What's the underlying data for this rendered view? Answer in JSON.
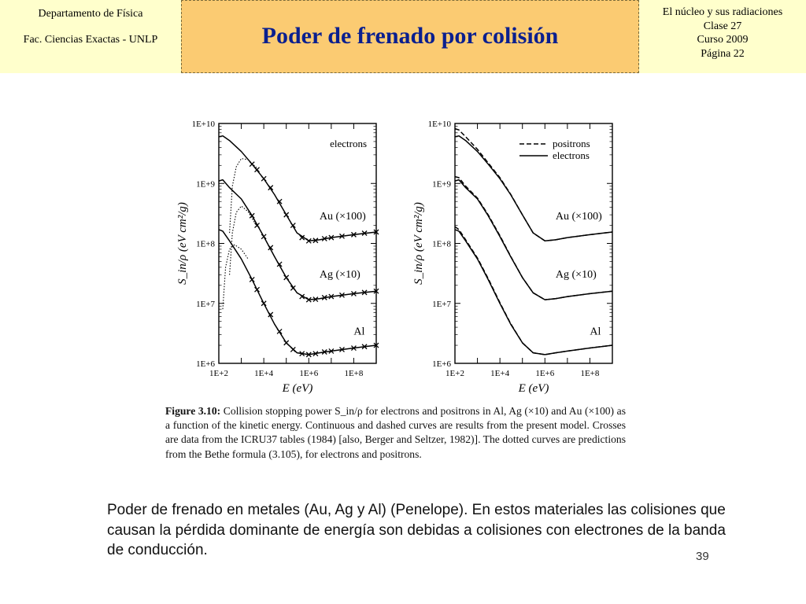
{
  "header": {
    "left": [
      "Departamento de Física",
      "Fac. Ciencias Exactas - UNLP"
    ],
    "title": "Poder de frenado por colisión",
    "right": [
      "El núcleo y sus radiaciones",
      "Clase 27",
      "Curso 2009",
      "Página 22"
    ]
  },
  "chart_data": [
    {
      "type": "line",
      "panel": "left",
      "legend_text": "electrons",
      "xlabel": "E  (eV)",
      "ylabel": "S_in/ρ  (eV cm²/g)",
      "xscale": "log",
      "yscale": "log",
      "xlim": [
        100,
        1000000000
      ],
      "ylim": [
        1000000,
        10000000000
      ],
      "x_ticks": [
        "1E+2",
        "1E+4",
        "1E+6",
        "1E+8"
      ],
      "y_ticks": [
        "1E+6",
        "1E+7",
        "1E+8",
        "1E+9",
        "1E+10"
      ],
      "series": [
        {
          "name": "Au (×100)",
          "style": "solid",
          "x": [
            100,
            150,
            300,
            1000,
            3000,
            10000,
            30000,
            100000,
            300000,
            1000000,
            3000000,
            10000000,
            100000000,
            1000000000
          ],
          "y": [
            6000000000,
            6200000000,
            5200000000,
            3400000000,
            2100000000,
            1200000000,
            650000000,
            300000000,
            150000000,
            110000000,
            115000000,
            125000000,
            140000000,
            155000000
          ]
        },
        {
          "name": "Au (×100) data",
          "style": "crosses",
          "x": [
            3000,
            5000,
            10000,
            20000,
            50000,
            100000,
            200000,
            500000,
            1000000,
            2000000,
            5000000,
            10000000,
            30000000,
            100000000,
            300000000,
            1000000000
          ],
          "y": [
            2100000000,
            1700000000,
            1200000000,
            850000000,
            500000000,
            300000000,
            200000000,
            125000000,
            110000000,
            112000000,
            120000000,
            125000000,
            132000000,
            140000000,
            148000000,
            155000000
          ]
        },
        {
          "name": "Au (×100) Bethe",
          "style": "dotted",
          "x": [
            300,
            400,
            600,
            1000,
            2000,
            5000
          ],
          "y": [
            150000000,
            900000000,
            1900000000,
            2600000000,
            2500000000,
            1800000000
          ]
        },
        {
          "name": "Ag (×10)",
          "style": "solid",
          "x": [
            100,
            150,
            300,
            1000,
            3000,
            10000,
            30000,
            100000,
            300000,
            1000000,
            3000000,
            10000000,
            100000000,
            1000000000
          ],
          "y": [
            1100000000,
            1150000000,
            850000000,
            550000000,
            290000000,
            130000000,
            60000000,
            27000000,
            15000000,
            11500000,
            12000000,
            13000000,
            14500000,
            16000000
          ]
        },
        {
          "name": "Ag (×10) data",
          "style": "crosses",
          "x": [
            3000,
            5000,
            10000,
            20000,
            50000,
            100000,
            200000,
            500000,
            1000000,
            2000000,
            5000000,
            10000000,
            30000000,
            100000000,
            300000000,
            1000000000
          ],
          "y": [
            290000000,
            200000000,
            130000000,
            85000000,
            45000000,
            27000000,
            18000000,
            13000000,
            11500000,
            11700000,
            12500000,
            13000000,
            13700000,
            14500000,
            15200000,
            16000000
          ]
        },
        {
          "name": "Ag (×10) Bethe",
          "style": "dotted",
          "x": [
            300,
            400,
            600,
            1000,
            2000,
            5000
          ],
          "y": [
            30000000,
            150000000,
            330000000,
            420000000,
            340000000,
            190000000
          ]
        },
        {
          "name": "Al",
          "style": "solid",
          "x": [
            100,
            150,
            300,
            1000,
            3000,
            10000,
            30000,
            100000,
            300000,
            1000000,
            3000000,
            10000000,
            100000000,
            1000000000
          ],
          "y": [
            170000000,
            160000000,
            110000000,
            55000000,
            25000000,
            10000000,
            4500000,
            2200000,
            1500000,
            1400000,
            1500000,
            1600000,
            1800000,
            2000000
          ]
        },
        {
          "name": "Al data",
          "style": "crosses",
          "x": [
            3000,
            5000,
            10000,
            20000,
            50000,
            100000,
            200000,
            500000,
            1000000,
            2000000,
            5000000,
            10000000,
            30000000,
            100000000,
            300000000,
            1000000000
          ],
          "y": [
            25000000,
            17000000,
            10000000,
            6500000,
            3400000,
            2200000,
            1700000,
            1450000,
            1400000,
            1450000,
            1550000,
            1600000,
            1700000,
            1800000,
            1900000,
            2000000
          ]
        },
        {
          "name": "Al Bethe",
          "style": "dotted",
          "x": [
            150,
            200,
            300,
            500,
            1000,
            2000
          ],
          "y": [
            8000000,
            40000000,
            80000000,
            95000000,
            80000000,
            55000000
          ]
        }
      ],
      "annotations": [
        {
          "text": "Au (×100)",
          "x": 3000000,
          "y": 250000000
        },
        {
          "text": "Ag (×10)",
          "x": 3000000,
          "y": 27000000
        },
        {
          "text": "Al",
          "x": 100000000,
          "y": 3000000
        }
      ]
    },
    {
      "type": "line",
      "panel": "right",
      "legend_entries": [
        {
          "label": "positrons",
          "style": "dashed"
        },
        {
          "label": "electrons",
          "style": "solid"
        }
      ],
      "xlabel": "E  (eV)",
      "ylabel": "S_in/ρ  (eV cm²/g)",
      "xscale": "log",
      "yscale": "log",
      "xlim": [
        100,
        1000000000
      ],
      "ylim": [
        1000000,
        10000000000
      ],
      "x_ticks": [
        "1E+2",
        "1E+4",
        "1E+6",
        "1E+8"
      ],
      "y_ticks": [
        "1E+6",
        "1E+7",
        "1E+8",
        "1E+9",
        "1E+10"
      ],
      "series": [
        {
          "name": "Au electrons",
          "style": "solid",
          "x": [
            100,
            150,
            300,
            1000,
            3000,
            10000,
            30000,
            100000,
            300000,
            1000000,
            3000000,
            10000000,
            100000000,
            1000000000
          ],
          "y": [
            6000000000,
            6200000000,
            5200000000,
            3400000000,
            2100000000,
            1200000000,
            650000000,
            300000000,
            150000000,
            110000000,
            115000000,
            125000000,
            140000000,
            155000000
          ]
        },
        {
          "name": "Au positrons",
          "style": "dashed",
          "x": [
            100,
            150,
            300,
            1000,
            3000,
            10000,
            30000,
            100000,
            300000,
            1000000,
            3000000,
            10000000,
            100000000,
            1000000000
          ],
          "y": [
            8200000000,
            7800000000,
            6000000000,
            3700000000,
            2200000000,
            1250000000,
            660000000,
            300000000,
            150000000,
            110000000,
            115000000,
            125000000,
            140000000,
            155000000
          ]
        },
        {
          "name": "Ag electrons",
          "style": "solid",
          "x": [
            100,
            150,
            300,
            1000,
            3000,
            10000,
            30000,
            100000,
            300000,
            1000000,
            3000000,
            10000000,
            100000000,
            1000000000
          ],
          "y": [
            1100000000,
            1150000000,
            850000000,
            550000000,
            290000000,
            130000000,
            60000000,
            27000000,
            15000000,
            11500000,
            12000000,
            13000000,
            14500000,
            16000000
          ]
        },
        {
          "name": "Ag positrons",
          "style": "dashed",
          "x": [
            100,
            150,
            300,
            1000,
            3000,
            10000,
            30000,
            100000,
            300000,
            1000000,
            3000000,
            10000000,
            100000000,
            1000000000
          ],
          "y": [
            1300000000,
            1250000000,
            900000000,
            570000000,
            300000000,
            135000000,
            61000000,
            27000000,
            15000000,
            11500000,
            12000000,
            13000000,
            14500000,
            16000000
          ]
        },
        {
          "name": "Al electrons",
          "style": "solid",
          "x": [
            100,
            150,
            300,
            1000,
            3000,
            10000,
            30000,
            100000,
            300000,
            1000000,
            3000000,
            10000000,
            100000000,
            1000000000
          ],
          "y": [
            170000000,
            160000000,
            110000000,
            55000000,
            25000000,
            10000000,
            4500000,
            2200000,
            1500000,
            1400000,
            1500000,
            1600000,
            1800000,
            2000000
          ]
        },
        {
          "name": "Al positrons",
          "style": "dashed",
          "x": [
            100,
            150,
            300,
            1000,
            3000,
            10000,
            30000,
            100000,
            300000,
            1000000,
            3000000,
            10000000,
            100000000,
            1000000000
          ],
          "y": [
            190000000,
            170000000,
            115000000,
            57000000,
            26000000,
            10300000,
            4600000,
            2200000,
            1500000,
            1400000,
            1500000,
            1600000,
            1800000,
            2000000
          ]
        }
      ],
      "annotations": [
        {
          "text": "Au (×100)",
          "x": 3000000,
          "y": 250000000
        },
        {
          "text": "Ag (×10)",
          "x": 3000000,
          "y": 27000000
        },
        {
          "text": "Al",
          "x": 100000000,
          "y": 3000000
        }
      ]
    }
  ],
  "figure_caption": {
    "label": "Figure 3.10:",
    "text": " Collision stopping power S_in/ρ for electrons and positrons in Al, Ag (×10) and Au (×100) as a function of the kinetic energy. Continuous and dashed curves are results from the present model. Crosses are data from the ICRU37 tables (1984) [also, Berger and Seltzer, 1982)]. The dotted curves are predictions from the Bethe formula (3.105), for electrons and positrons."
  },
  "bottom_text": "Poder de frenado en metales (Au, Ag y Al) (Penelope). En estos materiales las colisiones que causan la pérdida dominante de energía son debidas a colisiones con electrones de la banda de conducción.",
  "slide_number": "39"
}
